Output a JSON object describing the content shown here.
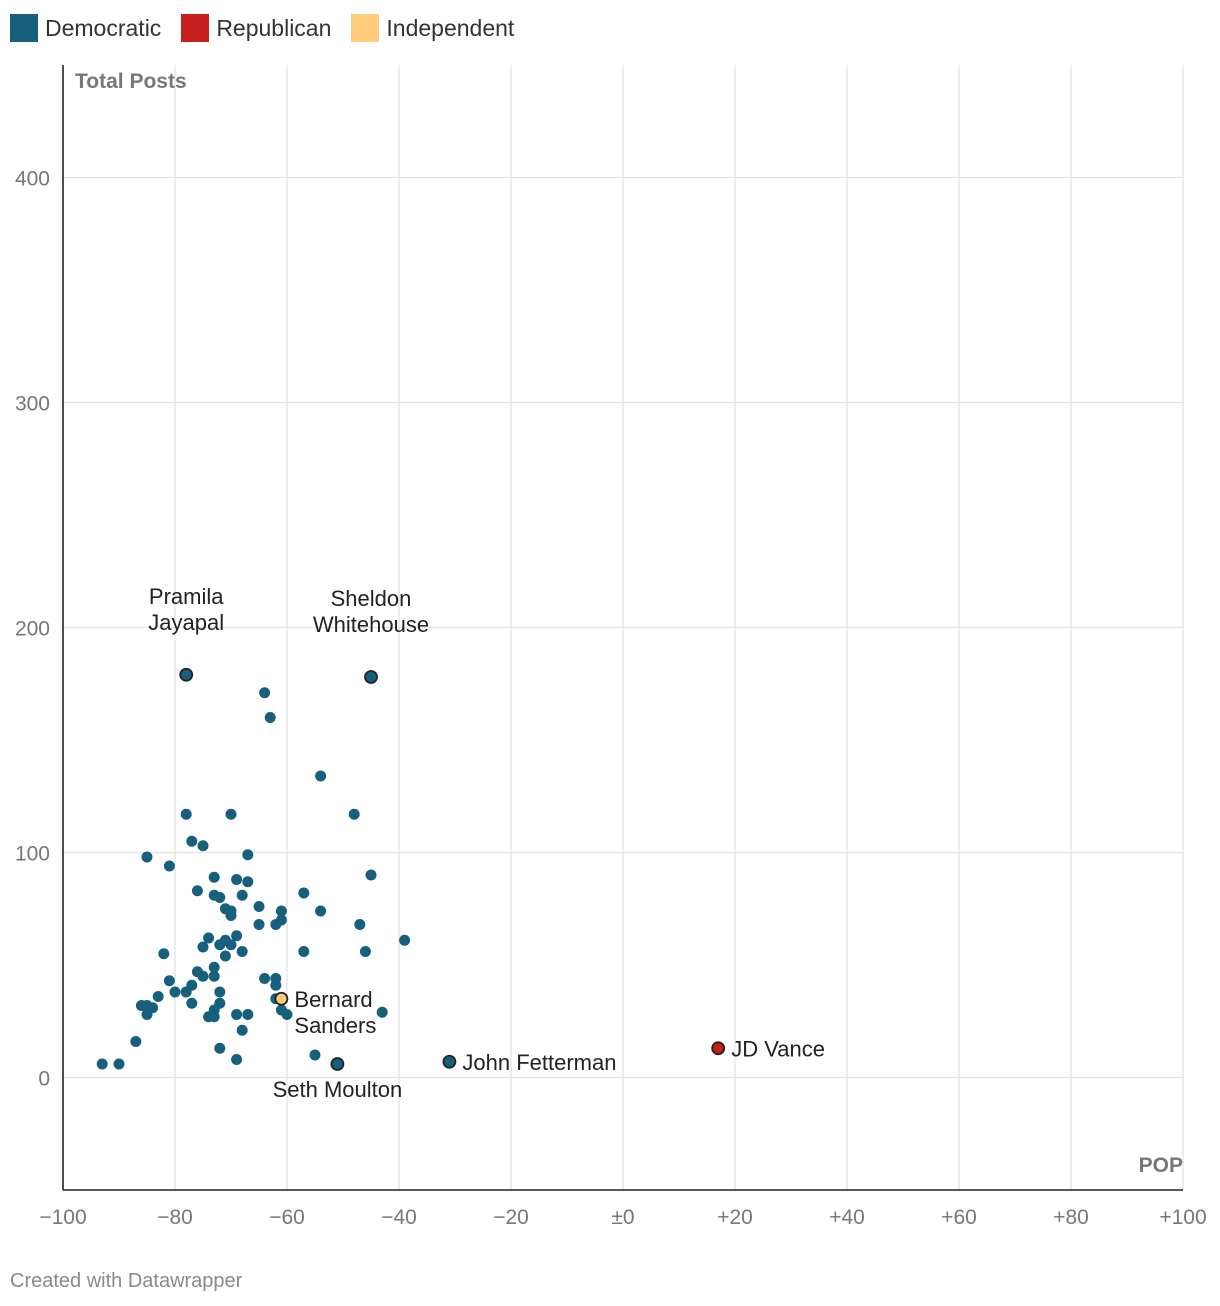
{
  "legend": [
    {
      "label": "Democratic",
      "color": "#17607d"
    },
    {
      "label": "Republican",
      "color": "#c71e1d"
    },
    {
      "label": "Independent",
      "color": "#fecc7b"
    }
  ],
  "footer": "Created with Datawrapper",
  "chart_data": {
    "type": "scatter",
    "title": "",
    "xlabel": "POP",
    "ylabel": "Total Posts",
    "xlim": [
      -100,
      100
    ],
    "ylim": [
      -50,
      450
    ],
    "x_ticks": [
      -100,
      -80,
      -60,
      -40,
      -20,
      0,
      20,
      40,
      60,
      80,
      100
    ],
    "x_tick_labels": [
      "−100",
      "−80",
      "−60",
      "−40",
      "−20",
      "±0",
      "+20",
      "+40",
      "+60",
      "+80",
      "+100"
    ],
    "y_ticks": [
      0,
      100,
      200,
      300,
      400
    ],
    "y_tick_labels": [
      "0",
      "100",
      "200",
      "300",
      "400"
    ],
    "grid": true,
    "series": [
      {
        "name": "Democratic",
        "color": "#17607d",
        "points": [
          {
            "x": -78,
            "y": 179,
            "label": "Pramila Jayapal"
          },
          {
            "x": -45,
            "y": 178,
            "label": "Sheldon Whitehouse"
          },
          {
            "x": -31,
            "y": 7,
            "label": "John Fetterman"
          },
          {
            "x": -51,
            "y": 6,
            "label": "Seth Moulton"
          },
          {
            "x": -64,
            "y": 171
          },
          {
            "x": -63,
            "y": 160
          },
          {
            "x": -54,
            "y": 134
          },
          {
            "x": -78,
            "y": 117
          },
          {
            "x": -70,
            "y": 117
          },
          {
            "x": -48,
            "y": 117
          },
          {
            "x": -77,
            "y": 105
          },
          {
            "x": -75,
            "y": 103
          },
          {
            "x": -85,
            "y": 98
          },
          {
            "x": -67,
            "y": 99
          },
          {
            "x": -81,
            "y": 94
          },
          {
            "x": -45,
            "y": 90
          },
          {
            "x": -73,
            "y": 89
          },
          {
            "x": -69,
            "y": 88
          },
          {
            "x": -67,
            "y": 87
          },
          {
            "x": -76,
            "y": 83
          },
          {
            "x": -57,
            "y": 82
          },
          {
            "x": -73,
            "y": 81
          },
          {
            "x": -72,
            "y": 80
          },
          {
            "x": -68,
            "y": 81
          },
          {
            "x": -71,
            "y": 75
          },
          {
            "x": -70,
            "y": 74
          },
          {
            "x": -70,
            "y": 72
          },
          {
            "x": -65,
            "y": 76
          },
          {
            "x": -61,
            "y": 74
          },
          {
            "x": -61,
            "y": 70
          },
          {
            "x": -62,
            "y": 68
          },
          {
            "x": -65,
            "y": 68
          },
          {
            "x": -54,
            "y": 74
          },
          {
            "x": -47,
            "y": 68
          },
          {
            "x": -39,
            "y": 61
          },
          {
            "x": -74,
            "y": 62
          },
          {
            "x": -71,
            "y": 61
          },
          {
            "x": -69,
            "y": 63
          },
          {
            "x": -70,
            "y": 59
          },
          {
            "x": -72,
            "y": 59
          },
          {
            "x": -75,
            "y": 58
          },
          {
            "x": -82,
            "y": 55
          },
          {
            "x": -71,
            "y": 54
          },
          {
            "x": -68,
            "y": 56
          },
          {
            "x": -57,
            "y": 56
          },
          {
            "x": -46,
            "y": 56
          },
          {
            "x": -73,
            "y": 49
          },
          {
            "x": -76,
            "y": 47
          },
          {
            "x": -75,
            "y": 45
          },
          {
            "x": -73,
            "y": 45
          },
          {
            "x": -64,
            "y": 44
          },
          {
            "x": -62,
            "y": 44
          },
          {
            "x": -81,
            "y": 43
          },
          {
            "x": -77,
            "y": 41
          },
          {
            "x": -62,
            "y": 41
          },
          {
            "x": -80,
            "y": 38
          },
          {
            "x": -78,
            "y": 38
          },
          {
            "x": -72,
            "y": 38
          },
          {
            "x": -83,
            "y": 36
          },
          {
            "x": -77,
            "y": 33
          },
          {
            "x": -72,
            "y": 33
          },
          {
            "x": -62,
            "y": 35
          },
          {
            "x": -86,
            "y": 32
          },
          {
            "x": -85,
            "y": 32
          },
          {
            "x": -84,
            "y": 31
          },
          {
            "x": -73,
            "y": 30
          },
          {
            "x": -61,
            "y": 30
          },
          {
            "x": -85,
            "y": 28
          },
          {
            "x": -74,
            "y": 27
          },
          {
            "x": -73,
            "y": 27
          },
          {
            "x": -69,
            "y": 28
          },
          {
            "x": -67,
            "y": 28
          },
          {
            "x": -60,
            "y": 28
          },
          {
            "x": -43,
            "y": 29
          },
          {
            "x": -68,
            "y": 21
          },
          {
            "x": -87,
            "y": 16
          },
          {
            "x": -72,
            "y": 13
          },
          {
            "x": -55,
            "y": 10
          },
          {
            "x": -69,
            "y": 8
          },
          {
            "x": -93,
            "y": 6
          },
          {
            "x": -90,
            "y": 6
          }
        ]
      },
      {
        "name": "Republican",
        "color": "#c71e1d",
        "points": [
          {
            "x": 17,
            "y": 13,
            "label": "JD Vance"
          }
        ]
      },
      {
        "name": "Independent",
        "color": "#fecc7b",
        "points": [
          {
            "x": -61,
            "y": 35,
            "label": "Bernard Sanders"
          }
        ]
      }
    ],
    "annotations": [
      {
        "lines": [
          "Pramila",
          "Jayapal"
        ],
        "x": -78,
        "y": 179,
        "position": "above"
      },
      {
        "lines": [
          "Sheldon",
          "Whitehouse"
        ],
        "x": -45,
        "y": 178,
        "position": "above"
      },
      {
        "lines": [
          "Bernard",
          "Sanders"
        ],
        "x": -61,
        "y": 35,
        "position": "right"
      },
      {
        "lines": [
          "JD Vance"
        ],
        "x": 17,
        "y": 13,
        "position": "right"
      },
      {
        "lines": [
          "John Fetterman"
        ],
        "x": -31,
        "y": 7,
        "position": "right"
      },
      {
        "lines": [
          "Seth Moulton"
        ],
        "x": -51,
        "y": 6,
        "position": "below"
      }
    ]
  }
}
